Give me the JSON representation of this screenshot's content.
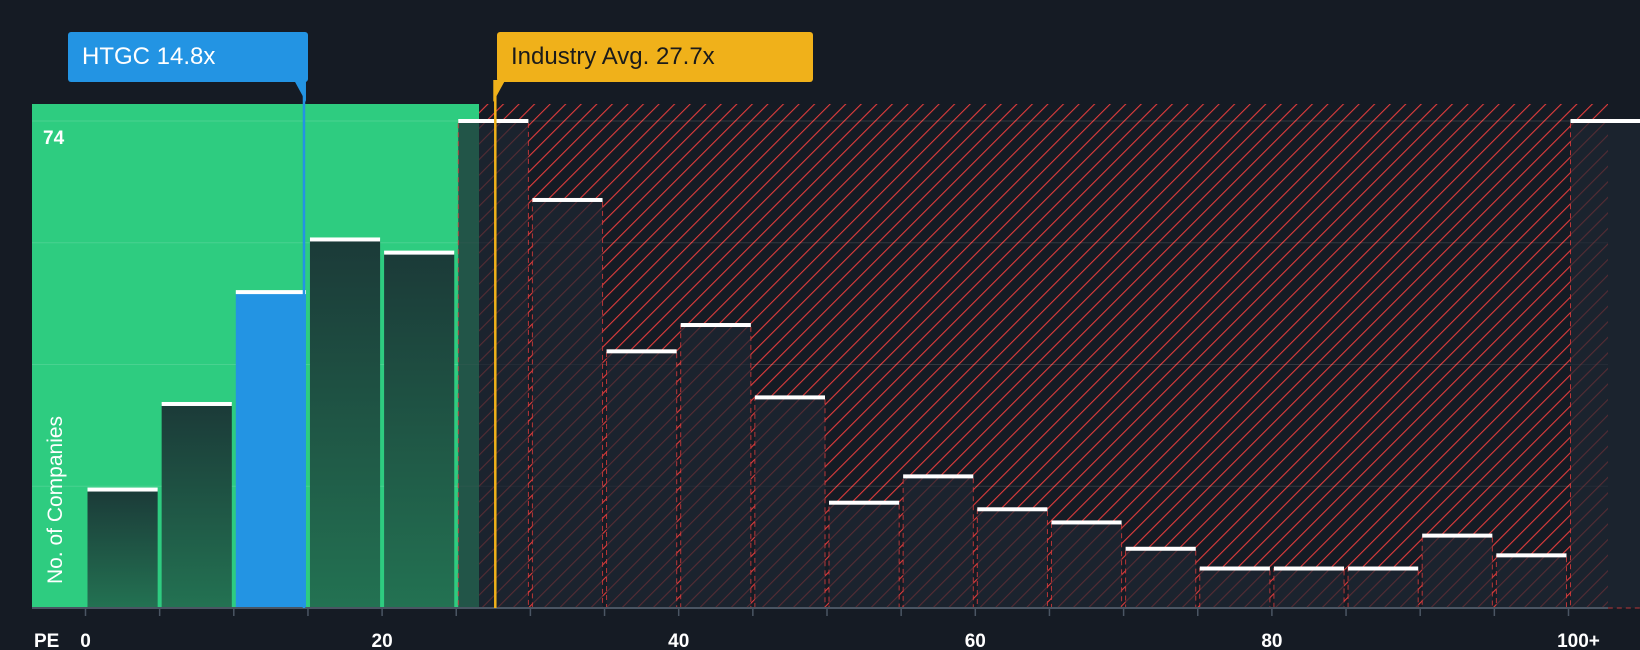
{
  "chart_data": {
    "type": "bar",
    "title": "",
    "xlabel": "PE",
    "ylabel": "No. of Companies",
    "bin_width": 5,
    "bins_start": [
      0,
      5,
      10,
      15,
      20,
      25,
      30,
      35,
      40,
      45,
      50,
      55,
      60,
      65,
      70,
      75,
      80,
      85,
      90,
      95,
      100
    ],
    "values": [
      18,
      31,
      48,
      56,
      54,
      74,
      62,
      39,
      43,
      32,
      16,
      20,
      15,
      13,
      9,
      6,
      6,
      6,
      11,
      8,
      74
    ],
    "x_ticks": [
      {
        "value": 0,
        "label": "0"
      },
      {
        "value": 20,
        "label": "20"
      },
      {
        "value": 40,
        "label": "40"
      },
      {
        "value": 60,
        "label": "60"
      },
      {
        "value": 80,
        "label": "80"
      },
      {
        "value": 100,
        "label": "100+"
      }
    ],
    "y_max_label": "74",
    "ylim": [
      0,
      74
    ],
    "company": {
      "ticker": "HTGC",
      "value": 14.8,
      "label": "HTGC 14.8x"
    },
    "industry": {
      "value": 27.7,
      "label": "Industry Avg. 27.7x"
    },
    "colors": {
      "background": "#151b24",
      "green_zone": "#2ecc80",
      "company_bar": "#2394e3",
      "company_line": "#2394e3",
      "industry_line": "#f0b11a",
      "hatch": "#e03c3c",
      "cap": "#ffffff"
    }
  }
}
